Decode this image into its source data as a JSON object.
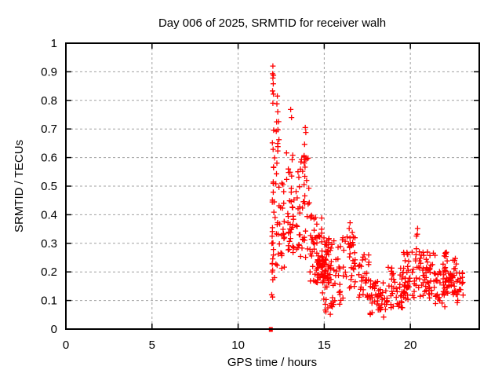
{
  "chart_data": {
    "type": "scatter",
    "title": "Day 006 of 2025, SRMTID for receiver walh",
    "xlabel": "GPS time / hours",
    "ylabel": "SRMTID / TECUs",
    "xlim": [
      0,
      24
    ],
    "ylim": [
      0,
      1
    ],
    "xtick_values": [
      0,
      5,
      10,
      15,
      20
    ],
    "xtick_labels": [
      "0",
      "5",
      "10",
      "15",
      "20"
    ],
    "ytick_values": [
      0,
      0.1,
      0.2,
      0.3,
      0.4,
      0.5,
      0.6,
      0.7,
      0.8,
      0.9,
      1
    ],
    "ytick_labels": [
      "0",
      "0.1",
      "0.2",
      "0.3",
      "0.4",
      "0.5",
      "0.6",
      "0.7",
      "0.8",
      "0.9",
      "1"
    ],
    "grid": true,
    "legend": "none",
    "marker": {
      "shape": "plus",
      "color": "#ff0000",
      "size": 7
    },
    "zero_marker": {
      "shape": "filled-square",
      "color": "#ff0000",
      "size": 5
    },
    "zero_marker_points": [
      [
        11.9,
        0.0
      ]
    ],
    "notable_points": [
      [
        12.02,
        0.92
      ],
      [
        12.0,
        0.893
      ],
      [
        12.05,
        0.888
      ],
      [
        12.02,
        0.878
      ],
      [
        12.04,
        0.858
      ],
      [
        12.0,
        0.833
      ],
      [
        12.05,
        0.822
      ],
      [
        12.02,
        0.79
      ],
      [
        12.28,
        0.815
      ],
      [
        12.25,
        0.788
      ],
      [
        12.3,
        0.76
      ],
      [
        13.05,
        0.768
      ],
      [
        13.1,
        0.74
      ],
      [
        13.9,
        0.705
      ],
      [
        13.93,
        0.688
      ],
      [
        16.5,
        0.372
      ],
      [
        16.45,
        0.352
      ],
      [
        20.42,
        0.352
      ],
      [
        20.4,
        0.332
      ],
      [
        18.45,
        0.042
      ],
      [
        15.35,
        0.052
      ],
      [
        11.95,
        0.12
      ],
      [
        12.0,
        0.112
      ],
      [
        22.0,
        0.078
      ]
    ],
    "point_bands": [
      {
        "x0": 11.95,
        "x1": 12.15,
        "y0": 0.38,
        "y1": 0.72,
        "n": 14
      },
      {
        "x0": 11.95,
        "x1": 12.18,
        "y0": 0.17,
        "y1": 0.4,
        "n": 16
      },
      {
        "x0": 12.18,
        "x1": 12.4,
        "y0": 0.45,
        "y1": 0.78,
        "n": 12
      },
      {
        "x0": 12.18,
        "x1": 12.42,
        "y0": 0.22,
        "y1": 0.45,
        "n": 10
      },
      {
        "x0": 12.42,
        "x1": 12.75,
        "y0": 0.3,
        "y1": 0.6,
        "n": 10
      },
      {
        "x0": 12.42,
        "x1": 12.72,
        "y0": 0.2,
        "y1": 0.35,
        "n": 8
      },
      {
        "x0": 12.78,
        "x1": 13.25,
        "y0": 0.33,
        "y1": 0.66,
        "n": 28
      },
      {
        "x0": 12.8,
        "x1": 13.25,
        "y0": 0.25,
        "y1": 0.33,
        "n": 8
      },
      {
        "x0": 13.35,
        "x1": 14.15,
        "y0": 0.33,
        "y1": 0.6,
        "n": 30
      },
      {
        "x0": 13.35,
        "x1": 14.15,
        "y0": 0.24,
        "y1": 0.33,
        "n": 14
      },
      {
        "x0": 13.82,
        "x1": 13.98,
        "y0": 0.55,
        "y1": 0.67,
        "n": 6
      },
      {
        "x0": 14.15,
        "x1": 15.45,
        "y0": 0.16,
        "y1": 0.33,
        "n": 85
      },
      {
        "x0": 14.55,
        "x1": 15.3,
        "y0": 0.17,
        "y1": 0.28,
        "n": 30
      },
      {
        "x0": 14.2,
        "x1": 14.9,
        "y0": 0.33,
        "y1": 0.4,
        "n": 10
      },
      {
        "x0": 14.9,
        "x1": 15.5,
        "y0": 0.06,
        "y1": 0.16,
        "n": 14
      },
      {
        "x0": 15.5,
        "x1": 16.1,
        "y0": 0.08,
        "y1": 0.33,
        "n": 26
      },
      {
        "x0": 16.1,
        "x1": 16.85,
        "y0": 0.14,
        "y1": 0.35,
        "n": 34
      },
      {
        "x0": 16.85,
        "x1": 17.6,
        "y0": 0.09,
        "y1": 0.26,
        "n": 30
      },
      {
        "x0": 17.6,
        "x1": 18.7,
        "y0": 0.05,
        "y1": 0.17,
        "n": 48
      },
      {
        "x0": 18.7,
        "x1": 19.6,
        "y0": 0.07,
        "y1": 0.22,
        "n": 40
      },
      {
        "x0": 19.6,
        "x1": 20.3,
        "y0": 0.1,
        "y1": 0.27,
        "n": 40
      },
      {
        "x0": 20.3,
        "x1": 20.55,
        "y0": 0.14,
        "y1": 0.33,
        "n": 14
      },
      {
        "x0": 20.55,
        "x1": 21.45,
        "y0": 0.1,
        "y1": 0.27,
        "n": 48
      },
      {
        "x0": 21.45,
        "x1": 21.85,
        "y0": 0.08,
        "y1": 0.21,
        "n": 16
      },
      {
        "x0": 21.85,
        "x1": 22.1,
        "y0": 0.08,
        "y1": 0.27,
        "n": 20
      },
      {
        "x0": 22.05,
        "x1": 22.75,
        "y0": 0.12,
        "y1": 0.25,
        "n": 42
      },
      {
        "x0": 22.7,
        "x1": 23.1,
        "y0": 0.09,
        "y1": 0.2,
        "n": 16
      }
    ],
    "seed": 1337
  },
  "colors": {
    "marker": "#ff0000",
    "grid": "#a0a0a0",
    "frame": "#000000",
    "text": "#000000",
    "background": "#ffffff"
  }
}
